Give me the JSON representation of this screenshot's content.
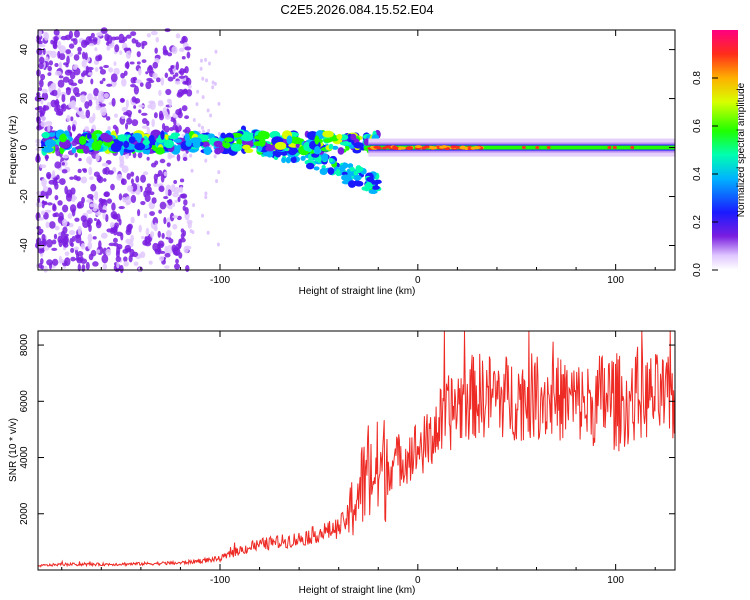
{
  "title": "C2E5.2026.084.15.52.E04",
  "chart_data": [
    {
      "type": "heatmap",
      "xlabel": "Height of straight line (km)",
      "ylabel": "Frequency (Hz)",
      "xlim": [
        -192,
        130
      ],
      "ylim": [
        -50,
        48
      ],
      "xticks": [
        -100,
        0,
        100
      ],
      "yticks": [
        -40,
        -20,
        0,
        20,
        40
      ],
      "colorbar": {
        "label": "Normalized spectral amplitude",
        "ticks": [
          0.0,
          0.2,
          0.4,
          0.6,
          0.8
        ],
        "range": [
          0,
          1
        ]
      },
      "features": [
        {
          "name": "noise scatter",
          "x_range": [
            -192,
            -115
          ],
          "freq_range": [
            -50,
            48
          ],
          "amplitude": 0.1
        },
        {
          "name": "main band",
          "x_range": [
            -190,
            130
          ],
          "center_freq": 2,
          "amplitude": 0.5
        },
        {
          "name": "descending branch",
          "x_from": -90,
          "x_to": -20,
          "freq_from": 5,
          "freq_to": -15,
          "amplitude": 0.3
        },
        {
          "name": "strong carrier",
          "x_range": [
            -25,
            130
          ],
          "center_freq": 0,
          "amplitude": 0.95
        }
      ]
    },
    {
      "type": "line",
      "xlabel": "Height of straight line (km)",
      "ylabel": "SNR (10 * v/v)",
      "xlim": [
        -192,
        130
      ],
      "ylim": [
        0,
        8500
      ],
      "xticks": [
        -100,
        0,
        100
      ],
      "yticks": [
        2000,
        4000,
        6000,
        8000
      ],
      "series": [
        {
          "name": "SNR",
          "color": "#ee2a24",
          "x": [
            -192,
            -180,
            -160,
            -140,
            -120,
            -100,
            -90,
            -80,
            -70,
            -60,
            -50,
            -40,
            -35,
            -30,
            -25,
            -20,
            -15,
            -10,
            -5,
            0,
            5,
            10,
            15,
            20,
            25,
            30,
            40,
            50,
            60,
            70,
            80,
            90,
            95,
            100,
            105,
            110,
            120,
            130
          ],
          "y": [
            150,
            200,
            200,
            220,
            250,
            400,
            700,
            900,
            1000,
            1100,
            1300,
            1500,
            1900,
            2800,
            3300,
            3500,
            3700,
            3900,
            4100,
            4300,
            4500,
            5100,
            5500,
            5900,
            6100,
            6200,
            6200,
            6100,
            6200,
            6100,
            6000,
            5800,
            6200,
            6000,
            5800,
            6100,
            6200,
            6000
          ]
        }
      ]
    }
  ]
}
